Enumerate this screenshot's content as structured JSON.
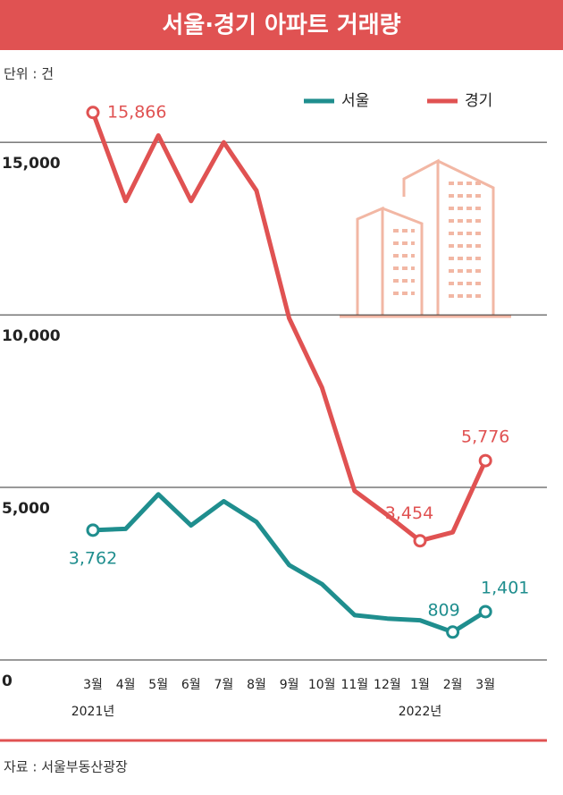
{
  "chart_data": {
    "type": "line",
    "title": "서울·경기 아파트 거래량",
    "unit_label": "단위 : 건",
    "source": "자료 : 서울부동산광장",
    "categories": [
      "3월",
      "4월",
      "5월",
      "6월",
      "7월",
      "8월",
      "9월",
      "10월",
      "11월",
      "12월",
      "1월",
      "2월",
      "3월"
    ],
    "category_years": [
      "2021년",
      null,
      null,
      null,
      null,
      null,
      null,
      null,
      null,
      null,
      "2022년",
      null,
      null
    ],
    "series": [
      {
        "name": "서울",
        "color": "#1f8e8e",
        "values": [
          3762,
          3800,
          4800,
          3900,
          4600,
          4000,
          2750,
          2200,
          1300,
          1200,
          1150,
          809,
          1401
        ],
        "value_labels": [
          "3,762",
          null,
          null,
          null,
          null,
          null,
          null,
          null,
          null,
          null,
          null,
          "809",
          "1,401"
        ]
      },
      {
        "name": "경기",
        "color": "#e05252",
        "values": [
          15866,
          13300,
          15200,
          13300,
          15000,
          13600,
          9900,
          7900,
          4900,
          4200,
          3454,
          3700,
          5776
        ],
        "value_labels": [
          "15,866",
          null,
          null,
          null,
          null,
          null,
          null,
          null,
          null,
          null,
          "3,454",
          null,
          "5,776"
        ]
      }
    ],
    "ylim": [
      0,
      17000
    ],
    "yticks": [
      0,
      {
        "value": 5000,
        "label": "5,000"
      },
      {
        "value": 10000,
        "label": "10,000"
      },
      {
        "value": 15000,
        "label": "15,000"
      }
    ],
    "grid": true,
    "legend": "top-right"
  }
}
